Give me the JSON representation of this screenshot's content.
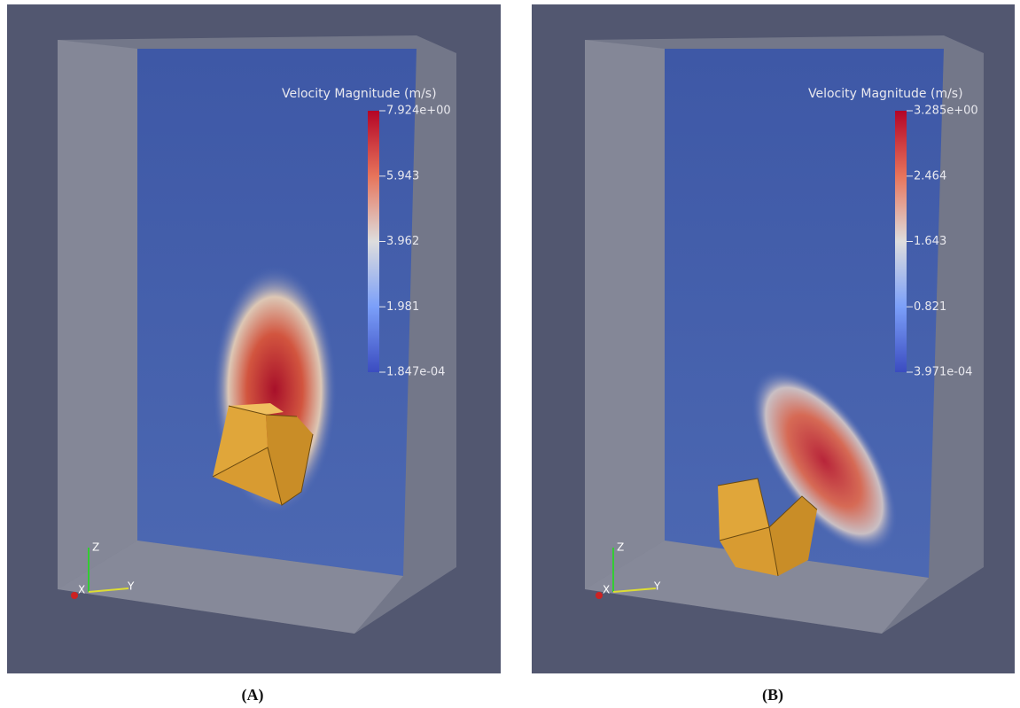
{
  "panels": [
    {
      "caption": "(A)",
      "colorbar": {
        "title": "Velocity Magnitude (m/s)",
        "labels": [
          "7.924e+00",
          "5.943",
          "3.962",
          "1.981",
          "1.847e-04"
        ]
      },
      "axes": {
        "z": "Z",
        "x": "X",
        "y": "Y"
      }
    },
    {
      "caption": "(B)",
      "colorbar": {
        "title": "Velocity Magnitude (m/s)",
        "labels": [
          "3.285e+00",
          "2.464",
          "1.643",
          "0.821",
          "3.971e-04"
        ]
      },
      "axes": {
        "z": "Z",
        "x": "X",
        "y": "Y"
      }
    }
  ]
}
